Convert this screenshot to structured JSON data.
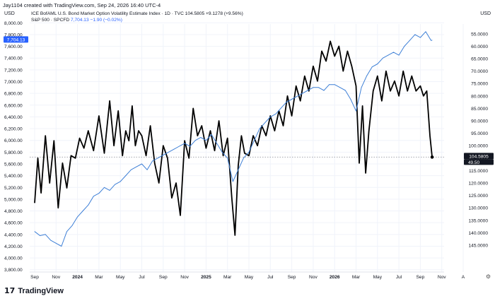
{
  "header": {
    "created": "Jay1104 created with TradingView.com, Sep 24, 2026 16:40 UTC-4",
    "left_currency": "USD",
    "right_currency": "USD"
  },
  "legend": {
    "primary": "ICE BofAML U.S. Bond Market Option Volatility Estimate Index · 1D · TVC  104.5805  +9.1278 (+9.56%)",
    "secondary_name": "S&P 500 · SPCFD",
    "secondary_values": "7,704.13  −1.90 (−0.02%)"
  },
  "footer": {
    "logo": "17",
    "brand": "TradingView"
  },
  "colors": {
    "move": "#000000",
    "spx": "#3d7fd6",
    "accent": "#2962ff",
    "grid": "#f0f3fa",
    "text": "#131722"
  },
  "chart_data": {
    "type": "line",
    "x_ticks": [
      "Sep",
      "Nov",
      "2024",
      "Mar",
      "May",
      "Jul",
      "Sep",
      "Nov",
      "2025",
      "Mar",
      "May",
      "Jul",
      "Sep",
      "Nov",
      "2026",
      "Mar",
      "May",
      "Jul",
      "Sep",
      "Nov",
      "A"
    ],
    "x_tick_months": [
      0,
      2,
      4,
      6,
      8,
      10,
      12,
      14,
      16,
      18,
      20,
      22,
      24,
      26,
      28,
      30,
      32,
      34,
      36,
      38,
      40
    ],
    "left_axis": {
      "ticks": [
        "8,000.00",
        "7,800.00",
        "7,600.00",
        "7,400.00",
        "7,200.00",
        "7,000.00",
        "6,800.00",
        "6,600.00",
        "6,400.00",
        "6,200.00",
        "6,000.00",
        "5,800.00",
        "5,600.00",
        "5,400.00",
        "5,200.00",
        "5,000.00",
        "4,800.00",
        "4,600.00",
        "4,400.00",
        "4,200.00",
        "4,000.00",
        "3,800.00"
      ],
      "range": [
        3800,
        8000
      ]
    },
    "right_axis": {
      "ticks": [
        "55.0000",
        "60.0000",
        "65.0000",
        "70.0000",
        "75.0000",
        "80.0000",
        "85.0000",
        "90.0000",
        "95.0000",
        "100.0000",
        "110.0000",
        "115.0000",
        "120.0000",
        "125.0000",
        "130.0000",
        "135.0000",
        "140.0000",
        "145.0000"
      ],
      "inverted": true
    },
    "last_price_labels": {
      "move": "104.5805",
      "spx": "7,704.13",
      "extra": "49.50"
    },
    "series": [
      {
        "name": "ICE BofAML U.S. Bond Market Option Volatility Estimate Index",
        "axis": "right-inverted",
        "x_months": [
          0,
          0.3,
          0.6,
          1.0,
          1.4,
          1.8,
          2.2,
          2.6,
          3.0,
          3.4,
          3.8,
          4.2,
          4.6,
          5.0,
          5.5,
          6.0,
          6.5,
          7.0,
          7.4,
          7.8,
          8.2,
          8.5,
          8.8,
          9.1,
          9.4,
          9.7,
          10.0,
          10.4,
          10.8,
          11.2,
          11.6,
          12.0,
          12.4,
          12.8,
          13.2,
          13.6,
          14.0,
          14.4,
          14.8,
          15.2,
          15.6,
          16.0,
          16.4,
          16.8,
          17.2,
          17.6,
          18.0,
          18.4,
          18.7,
          19.0,
          19.3,
          19.6,
          20.0,
          20.4,
          20.8,
          21.2,
          21.6,
          22.0,
          22.4,
          22.8,
          23.2,
          23.6,
          24.0,
          24.4,
          24.8,
          25.2,
          25.6,
          26.0,
          26.4,
          26.8,
          27.2,
          27.6,
          28.0,
          28.4,
          28.8,
          29.2,
          29.6,
          30.0,
          30.3,
          30.6,
          30.9,
          31.2,
          31.6,
          32.0,
          32.4,
          32.8,
          33.2,
          33.6,
          34.0,
          34.4,
          34.8,
          35.2,
          35.6,
          36.0,
          36.3,
          36.6,
          36.9,
          37.1
        ],
        "values": [
          128,
          105,
          124,
          96,
          120,
          98,
          130,
          112,
          122,
          104,
          110,
          97,
          106,
          94,
          102,
          88,
          108,
          82,
          100,
          86,
          104,
          94,
          98,
          84,
          100,
          94,
          96,
          104,
          92,
          112,
          120,
          100,
          110,
          126,
          120,
          133,
          98,
          105,
          85,
          96,
          92,
          106,
          94,
          102,
          90,
          104,
          97,
          126,
          141,
          113,
          96,
          108,
          104,
          96,
          100,
          92,
          96,
          88,
          94,
          86,
          92,
          80,
          88,
          76,
          82,
          72,
          78,
          68,
          74,
          62,
          66,
          58,
          64,
          60,
          70,
          62,
          68,
          76,
          112,
          84,
          116,
          94,
          78,
          72,
          82,
          70,
          78,
          74,
          80,
          70,
          78,
          72,
          78,
          76,
          80,
          78,
          96,
          104.58
        ]
      },
      {
        "name": "S&P 500",
        "axis": "left",
        "x_months": [
          0,
          0.5,
          1.0,
          1.5,
          2.0,
          2.5,
          3.0,
          3.5,
          4.0,
          4.5,
          5.0,
          5.5,
          6.0,
          6.5,
          7.0,
          7.5,
          8.0,
          8.5,
          9.0,
          9.5,
          10.0,
          10.5,
          11.0,
          11.5,
          12.0,
          12.5,
          13.0,
          13.5,
          14.0,
          14.5,
          15.0,
          15.5,
          16.0,
          16.5,
          17.0,
          17.5,
          18.0,
          18.5,
          19.0,
          19.5,
          20.0,
          20.5,
          21.0,
          21.5,
          22.0,
          22.5,
          23.0,
          23.5,
          24.0,
          24.5,
          25.0,
          25.5,
          26.0,
          26.5,
          27.0,
          27.5,
          28.0,
          28.5,
          29.0,
          29.5,
          30.0,
          30.5,
          31.0,
          31.5,
          32.0,
          32.5,
          33.0,
          33.5,
          34.0,
          34.5,
          35.0,
          35.5,
          36.0,
          36.5,
          37.0,
          37.1
        ],
        "values": [
          4450,
          4380,
          4400,
          4300,
          4250,
          4200,
          4450,
          4550,
          4700,
          4800,
          4900,
          5050,
          5100,
          5200,
          5150,
          5250,
          5300,
          5400,
          5500,
          5550,
          5600,
          5500,
          5650,
          5700,
          5750,
          5800,
          5850,
          5900,
          5950,
          5900,
          6000,
          6050,
          6000,
          6100,
          5950,
          5800,
          5700,
          5300,
          5500,
          5700,
          5800,
          6000,
          6200,
          6300,
          6400,
          6450,
          6550,
          6650,
          6700,
          6750,
          6800,
          6850,
          6900,
          6900,
          6850,
          6950,
          6950,
          6900,
          6850,
          6700,
          6500,
          6900,
          7100,
          7250,
          7300,
          7400,
          7450,
          7500,
          7450,
          7600,
          7700,
          7800,
          7750,
          7850,
          7700,
          7704.13
        ]
      }
    ]
  }
}
